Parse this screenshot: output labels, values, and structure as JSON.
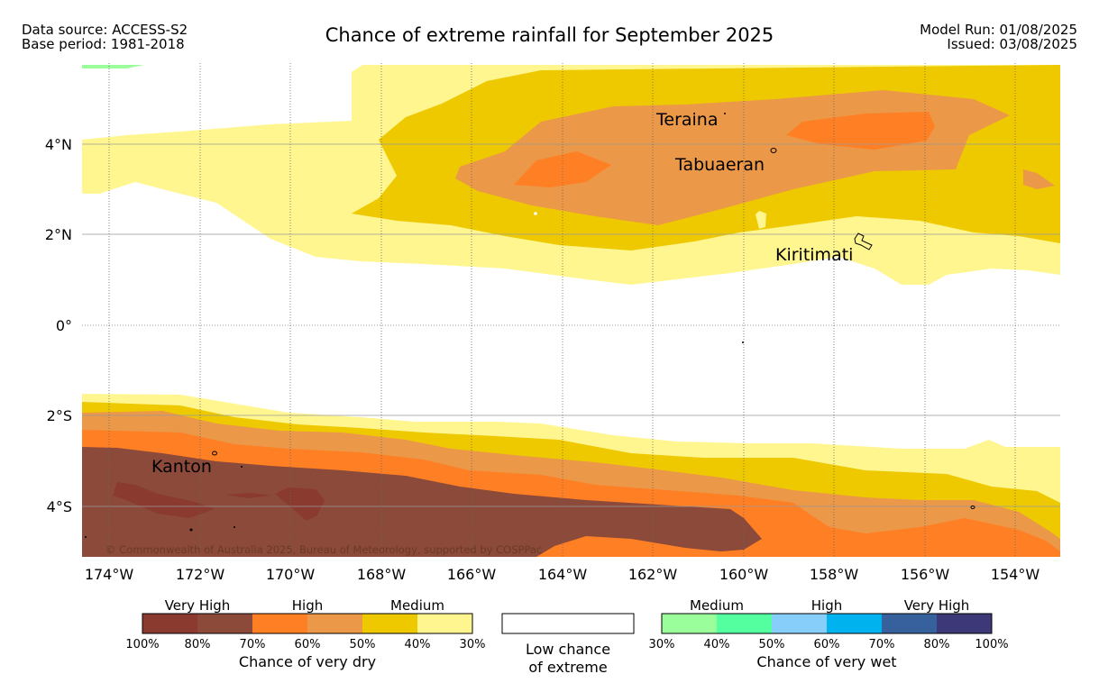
{
  "header": {
    "left_line1": "Data source: ACCESS-S2",
    "left_line2": "Base period: 1981-2018",
    "title": "Chance of extreme rainfall for September 2025",
    "right_line1": "Model Run: 01/08/2025",
    "right_line2": "Issued: 03/08/2025"
  },
  "map": {
    "lat_labels": [
      "4°N",
      "2°N",
      "0°",
      "2°S",
      "4°S"
    ],
    "lon_labels": [
      "174°W",
      "172°W",
      "170°W",
      "168°W",
      "166°W",
      "164°W",
      "162°W",
      "160°W",
      "158°W",
      "156°W",
      "154°W"
    ],
    "places": [
      "Teraina",
      "Tabuaeran",
      "Kiritimati",
      "Kanton"
    ],
    "copyright": "© Commonwealth of Australia 2025, Bureau of Meteorology, supported by COSPPac"
  },
  "legend": {
    "dry": {
      "categories": [
        "Very High",
        "High",
        "Medium"
      ],
      "ticks": [
        "100%",
        "80%",
        "70%",
        "60%",
        "50%",
        "40%",
        "30%"
      ],
      "colors": [
        "#8b3a2f",
        "#8b4a3a",
        "#ff7f24",
        "#eb9848",
        "#eec900",
        "#fff68f"
      ],
      "caption": "Chance of very dry"
    },
    "low": {
      "line1": "Low chance",
      "line2": "of extreme"
    },
    "wet": {
      "categories": [
        "Medium",
        "High",
        "Very High"
      ],
      "ticks": [
        "30%",
        "40%",
        "50%",
        "60%",
        "70%",
        "80%",
        "100%"
      ],
      "colors": [
        "#9aff9a",
        "#54ff9f",
        "#87cefa",
        "#00b2ee",
        "#36619d",
        "#3d3978"
      ],
      "caption": "Chance of very wet"
    }
  }
}
